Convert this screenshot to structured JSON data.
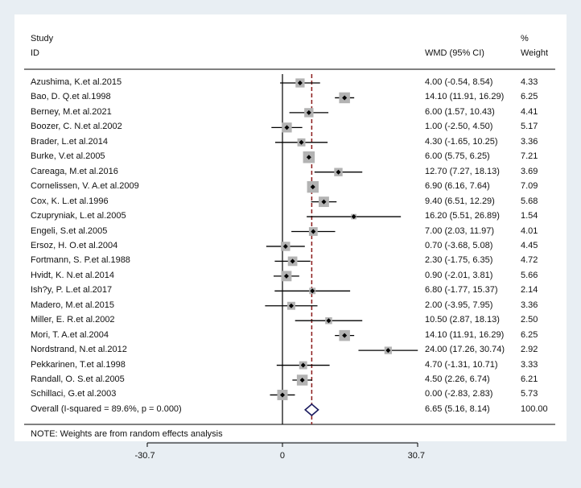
{
  "headers": {
    "study_line1": "Study",
    "study_line2": "ID",
    "effect": "WMD (95% CI)",
    "weight_line1": "%",
    "weight_line2": "Weight"
  },
  "note": "NOTE: Weights are from random effects analysis",
  "colors": {
    "background": "#e8eef3",
    "panel": "#ffffff",
    "box": "#b3b3b3",
    "point": "#000000",
    "overall_line": "#8b1a1a",
    "diamond": "#1a1a5e"
  },
  "chart_data": {
    "type": "forest",
    "xlim": [
      -30.7,
      30.7
    ],
    "xticks": [
      -30.7,
      0,
      30.7
    ],
    "xtick_labels": [
      "-30.7",
      "0",
      "30.7"
    ],
    "null_line": 0,
    "overall_effect": 6.65,
    "studies": [
      {
        "name": "Azushima, K.et al.2015",
        "wmd": 4.0,
        "lo": -0.54,
        "hi": 8.54,
        "ci_text": "4.00 (-0.54, 8.54)",
        "weight": 4.33,
        "weight_text": "4.33"
      },
      {
        "name": "Bao, D. Q.et al.1998",
        "wmd": 14.1,
        "lo": 11.91,
        "hi": 16.29,
        "ci_text": "14.10 (11.91, 16.29)",
        "weight": 6.25,
        "weight_text": "6.25"
      },
      {
        "name": "Berney, M.et al.2021",
        "wmd": 6.0,
        "lo": 1.57,
        "hi": 10.43,
        "ci_text": "6.00 (1.57, 10.43)",
        "weight": 4.41,
        "weight_text": "4.41"
      },
      {
        "name": "Boozer, C. N.et al.2002",
        "wmd": 1.0,
        "lo": -2.5,
        "hi": 4.5,
        "ci_text": "1.00 (-2.50, 4.50)",
        "weight": 5.17,
        "weight_text": "5.17"
      },
      {
        "name": "Brader, L.et al.2014",
        "wmd": 4.3,
        "lo": -1.65,
        "hi": 10.25,
        "ci_text": "4.30 (-1.65, 10.25)",
        "weight": 3.36,
        "weight_text": "3.36"
      },
      {
        "name": "Burke, V.et al.2005",
        "wmd": 6.0,
        "lo": 5.75,
        "hi": 6.25,
        "ci_text": "6.00 (5.75, 6.25)",
        "weight": 7.21,
        "weight_text": "7.21"
      },
      {
        "name": "Careaga, M.et al.2016",
        "wmd": 12.7,
        "lo": 7.27,
        "hi": 18.13,
        "ci_text": "12.70 (7.27, 18.13)",
        "weight": 3.69,
        "weight_text": "3.69"
      },
      {
        "name": "Cornelissen, V. A.et al.2009",
        "wmd": 6.9,
        "lo": 6.16,
        "hi": 7.64,
        "ci_text": "6.90 (6.16, 7.64)",
        "weight": 7.09,
        "weight_text": "7.09"
      },
      {
        "name": "Cox, K. L.et al.1996",
        "wmd": 9.4,
        "lo": 6.51,
        "hi": 12.29,
        "ci_text": "9.40 (6.51, 12.29)",
        "weight": 5.68,
        "weight_text": "5.68"
      },
      {
        "name": "Czupryniak, L.et al.2005",
        "wmd": 16.2,
        "lo": 5.51,
        "hi": 26.89,
        "ci_text": "16.20 (5.51, 26.89)",
        "weight": 1.54,
        "weight_text": "1.54"
      },
      {
        "name": "Engeli, S.et al.2005",
        "wmd": 7.0,
        "lo": 2.03,
        "hi": 11.97,
        "ci_text": "7.00 (2.03, 11.97)",
        "weight": 4.01,
        "weight_text": "4.01"
      },
      {
        "name": "Ersoz, H. O.et al.2004",
        "wmd": 0.7,
        "lo": -3.68,
        "hi": 5.08,
        "ci_text": "0.70 (-3.68, 5.08)",
        "weight": 4.45,
        "weight_text": "4.45"
      },
      {
        "name": "Fortmann, S. P.et al.1988",
        "wmd": 2.3,
        "lo": -1.75,
        "hi": 6.35,
        "ci_text": "2.30 (-1.75, 6.35)",
        "weight": 4.72,
        "weight_text": "4.72"
      },
      {
        "name": "Hvidt, K. N.et al.2014",
        "wmd": 0.9,
        "lo": -2.01,
        "hi": 3.81,
        "ci_text": "0.90 (-2.01, 3.81)",
        "weight": 5.66,
        "weight_text": "5.66"
      },
      {
        "name": "Ish?y, P. L.et al.2017",
        "wmd": 6.8,
        "lo": -1.77,
        "hi": 15.37,
        "ci_text": "6.80 (-1.77, 15.37)",
        "weight": 2.14,
        "weight_text": "2.14"
      },
      {
        "name": "Madero, M.et al.2015",
        "wmd": 2.0,
        "lo": -3.95,
        "hi": 7.95,
        "ci_text": "2.00 (-3.95, 7.95)",
        "weight": 3.36,
        "weight_text": "3.36"
      },
      {
        "name": "Miller, E. R.et al.2002",
        "wmd": 10.5,
        "lo": 2.87,
        "hi": 18.13,
        "ci_text": "10.50 (2.87, 18.13)",
        "weight": 2.5,
        "weight_text": "2.50"
      },
      {
        "name": "Mori, T. A.et al.2004",
        "wmd": 14.1,
        "lo": 11.91,
        "hi": 16.29,
        "ci_text": "14.10 (11.91, 16.29)",
        "weight": 6.25,
        "weight_text": "6.25"
      },
      {
        "name": "Nordstrand, N.et al.2012",
        "wmd": 24.0,
        "lo": 17.26,
        "hi": 30.74,
        "ci_text": "24.00 (17.26, 30.74)",
        "weight": 2.92,
        "weight_text": "2.92"
      },
      {
        "name": "Pekkarinen, T.et al.1998",
        "wmd": 4.7,
        "lo": -1.31,
        "hi": 10.71,
        "ci_text": "4.70 (-1.31, 10.71)",
        "weight": 3.33,
        "weight_text": "3.33"
      },
      {
        "name": "Randall, O. S.et al.2005",
        "wmd": 4.5,
        "lo": 2.26,
        "hi": 6.74,
        "ci_text": "4.50 (2.26, 6.74)",
        "weight": 6.21,
        "weight_text": "6.21"
      },
      {
        "name": "Schillaci, G.et al.2003",
        "wmd": 0.0,
        "lo": -2.83,
        "hi": 2.83,
        "ci_text": "0.00 (-2.83, 2.83)",
        "weight": 5.73,
        "weight_text": "5.73"
      }
    ],
    "overall": {
      "label": "Overall  (I-squared = 89.6%, p = 0.000)",
      "wmd": 6.65,
      "lo": 5.16,
      "hi": 8.14,
      "ci_text": "6.65 (5.16, 8.14)",
      "weight_text": "100.00"
    }
  }
}
